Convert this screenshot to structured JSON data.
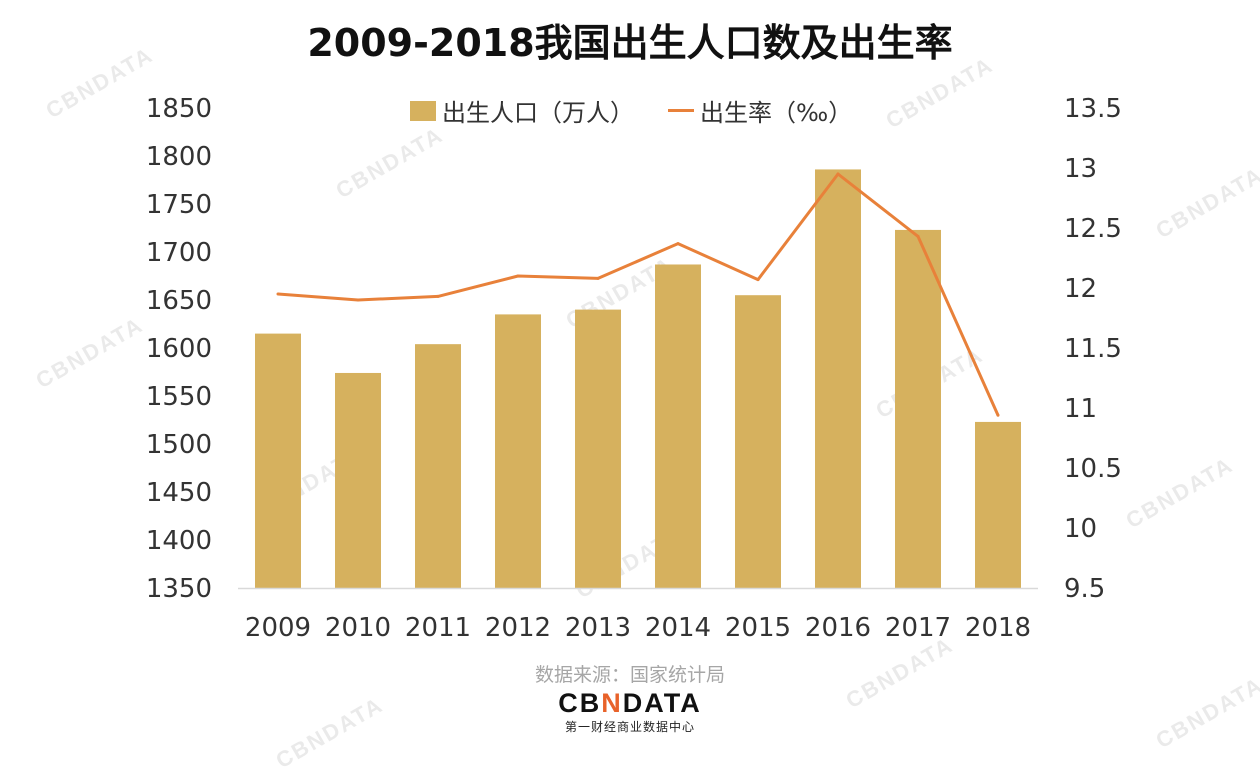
{
  "chart_data": {
    "type": "bar",
    "title": "2009-2018我国出生人口数及出生率",
    "categories": [
      "2009",
      "2010",
      "2011",
      "2012",
      "2013",
      "2014",
      "2015",
      "2016",
      "2017",
      "2018"
    ],
    "series": [
      {
        "name": "出生人口（万人）",
        "type": "bar",
        "axis": "left",
        "color": "#D6B15E",
        "values": [
          1615,
          1574,
          1604,
          1635,
          1640,
          1687,
          1655,
          1786,
          1723,
          1523
        ]
      },
      {
        "name": "出生率（‰）",
        "type": "line",
        "axis": "right",
        "color": "#E8813A",
        "values": [
          11.95,
          11.9,
          11.93,
          12.1,
          12.08,
          12.37,
          12.07,
          12.95,
          12.43,
          10.94
        ]
      }
    ],
    "y_left": {
      "min": 1350,
      "max": 1850,
      "step": 50,
      "ticks": [
        "1350",
        "1400",
        "1450",
        "1500",
        "1550",
        "1600",
        "1650",
        "1700",
        "1750",
        "1800",
        "1850"
      ]
    },
    "y_right": {
      "min": 9.5,
      "max": 13.5,
      "step": 0.5,
      "ticks": [
        "9.5",
        "10",
        "10.5",
        "11",
        "11.5",
        "12",
        "12.5",
        "13",
        "13.5"
      ]
    },
    "legend_position": "top-center",
    "grid": false
  },
  "legend": {
    "bar_label": "出生人口（万人）",
    "line_label": "出生率（‰）"
  },
  "source": "数据来源：国家统计局",
  "brand": {
    "logo_prefix": "CB",
    "logo_mark": "N",
    "logo_suffix": "DATA",
    "subtitle": "第一财经商业数据中心"
  },
  "watermark_text": "CBNDATA"
}
